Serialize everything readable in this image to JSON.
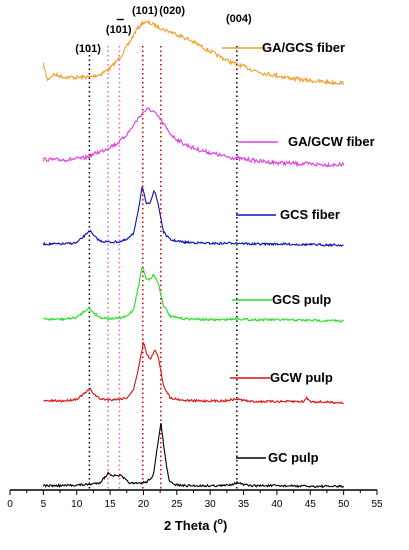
{
  "chart_data": {
    "type": "line",
    "title": "",
    "xlabel": "2 Theta (",
    "xlabel_sup": "o",
    "xlabel_close": ")",
    "ylabel": "",
    "xlim": [
      0,
      55
    ],
    "x_ticks": [
      "0",
      "5",
      "10",
      "15",
      "20",
      "25",
      "30",
      "35",
      "40",
      "45",
      "50",
      "55"
    ],
    "peak_labels": [
      {
        "text": "(101)",
        "x": 11.7
      },
      {
        "text": "(101)",
        "x": 16.3
      },
      {
        "text": "(101)",
        "x": 20.2
      },
      {
        "text": "(020)",
        "x": 24.3
      },
      {
        "text": "(004)",
        "x": 34.3
      }
    ],
    "reference_lines": [
      {
        "x": 11.9,
        "color": "#000000"
      },
      {
        "x": 14.7,
        "color": "#e060e0"
      },
      {
        "x": 16.4,
        "color": "#e060e0"
      },
      {
        "x": 19.9,
        "color": "#d00000"
      },
      {
        "x": 22.6,
        "color": "#d00000"
      },
      {
        "x": 34.0,
        "color": "#000000"
      }
    ],
    "series": [
      {
        "name": "GA/GCS fiber",
        "color": "#f0a030",
        "points": [
          [
            5,
            0.3
          ],
          [
            5.6,
            0.05
          ],
          [
            6.5,
            0.14
          ],
          [
            8,
            0.1
          ],
          [
            10,
            0.09
          ],
          [
            12,
            0.1
          ],
          [
            13.5,
            0.14
          ],
          [
            15,
            0.24
          ],
          [
            16.5,
            0.42
          ],
          [
            18,
            0.68
          ],
          [
            19,
            0.88
          ],
          [
            20,
            1.0
          ],
          [
            21,
            0.98
          ],
          [
            22,
            0.93
          ],
          [
            23,
            0.88
          ],
          [
            24,
            0.84
          ],
          [
            25,
            0.8
          ],
          [
            26,
            0.75
          ],
          [
            27,
            0.7
          ],
          [
            28,
            0.64
          ],
          [
            29,
            0.58
          ],
          [
            30,
            0.52
          ],
          [
            31,
            0.46
          ],
          [
            32,
            0.4
          ],
          [
            33,
            0.35
          ],
          [
            34,
            0.31
          ],
          [
            35,
            0.27
          ],
          [
            36,
            0.23
          ],
          [
            38,
            0.16
          ],
          [
            40,
            0.12
          ],
          [
            42,
            0.08
          ],
          [
            44,
            0.05
          ],
          [
            46,
            0.03
          ],
          [
            48,
            0.01
          ],
          [
            50,
            0.0
          ]
        ]
      },
      {
        "name": "GA/GCW fiber",
        "color": "#e040e0",
        "points": [
          [
            5,
            0.1
          ],
          [
            7,
            0.09
          ],
          [
            9,
            0.1
          ],
          [
            11,
            0.12
          ],
          [
            12,
            0.16
          ],
          [
            13,
            0.22
          ],
          [
            14,
            0.26
          ],
          [
            15,
            0.33
          ],
          [
            16,
            0.38
          ],
          [
            17,
            0.48
          ],
          [
            18,
            0.62
          ],
          [
            19,
            0.8
          ],
          [
            20,
            0.95
          ],
          [
            20.8,
            1.0
          ],
          [
            21.5,
            0.95
          ],
          [
            22.5,
            0.82
          ],
          [
            23.5,
            0.64
          ],
          [
            24.5,
            0.5
          ],
          [
            26,
            0.38
          ],
          [
            28,
            0.28
          ],
          [
            30,
            0.22
          ],
          [
            32,
            0.16
          ],
          [
            34,
            0.12
          ],
          [
            36,
            0.09
          ],
          [
            38,
            0.06
          ],
          [
            40,
            0.04
          ],
          [
            42,
            0.03
          ],
          [
            44,
            0.02
          ],
          [
            46,
            0.01
          ],
          [
            50,
            0.0
          ]
        ]
      },
      {
        "name": "GCS fiber",
        "color": "#1010b0",
        "points": [
          [
            5,
            0.05
          ],
          [
            8,
            0.05
          ],
          [
            10,
            0.07
          ],
          [
            11.3,
            0.2
          ],
          [
            11.9,
            0.28
          ],
          [
            12.6,
            0.18
          ],
          [
            13.5,
            0.1
          ],
          [
            15,
            0.08
          ],
          [
            16.5,
            0.09
          ],
          [
            17.5,
            0.12
          ],
          [
            18.5,
            0.22
          ],
          [
            19.2,
            0.6
          ],
          [
            19.8,
            1.0
          ],
          [
            20.5,
            0.7
          ],
          [
            21.0,
            0.75
          ],
          [
            21.6,
            0.95
          ],
          [
            22.2,
            0.72
          ],
          [
            23.0,
            0.25
          ],
          [
            24,
            0.12
          ],
          [
            26,
            0.08
          ],
          [
            28,
            0.07
          ],
          [
            30,
            0.06
          ],
          [
            32,
            0.06
          ],
          [
            34,
            0.07
          ],
          [
            36,
            0.05
          ],
          [
            40,
            0.05
          ],
          [
            45,
            0.04
          ],
          [
            50,
            0.03
          ]
        ]
      },
      {
        "name": "GCS pulp",
        "color": "#20e020",
        "points": [
          [
            5,
            0.05
          ],
          [
            8,
            0.05
          ],
          [
            10,
            0.08
          ],
          [
            11,
            0.18
          ],
          [
            11.8,
            0.25
          ],
          [
            12.6,
            0.16
          ],
          [
            13.5,
            0.08
          ],
          [
            15,
            0.06
          ],
          [
            16.5,
            0.07
          ],
          [
            17.5,
            0.1
          ],
          [
            18.5,
            0.22
          ],
          [
            19.2,
            0.6
          ],
          [
            19.8,
            1.0
          ],
          [
            20.4,
            0.78
          ],
          [
            21.0,
            0.76
          ],
          [
            21.5,
            0.85
          ],
          [
            22.2,
            0.7
          ],
          [
            23.0,
            0.3
          ],
          [
            24,
            0.1
          ],
          [
            26,
            0.06
          ],
          [
            28,
            0.05
          ],
          [
            30,
            0.04
          ],
          [
            32,
            0.04
          ],
          [
            34,
            0.06
          ],
          [
            36,
            0.04
          ],
          [
            40,
            0.04
          ],
          [
            45,
            0.03
          ],
          [
            50,
            0.02
          ]
        ]
      },
      {
        "name": "GCW pulp",
        "color": "#e01010",
        "points": [
          [
            5,
            0.05
          ],
          [
            8,
            0.05
          ],
          [
            10,
            0.08
          ],
          [
            11.3,
            0.18
          ],
          [
            12.0,
            0.24
          ],
          [
            12.8,
            0.14
          ],
          [
            13.5,
            0.08
          ],
          [
            15,
            0.07
          ],
          [
            16.5,
            0.08
          ],
          [
            17.5,
            0.1
          ],
          [
            18.5,
            0.22
          ],
          [
            19.3,
            0.6
          ],
          [
            20.0,
            1.0
          ],
          [
            20.6,
            0.78
          ],
          [
            21.1,
            0.72
          ],
          [
            21.7,
            0.88
          ],
          [
            22.3,
            0.72
          ],
          [
            23.0,
            0.3
          ],
          [
            24,
            0.1
          ],
          [
            26,
            0.06
          ],
          [
            28,
            0.05
          ],
          [
            30,
            0.05
          ],
          [
            32,
            0.05
          ],
          [
            34,
            0.08
          ],
          [
            36,
            0.04
          ],
          [
            40,
            0.04
          ],
          [
            44,
            0.04
          ],
          [
            44.5,
            0.1
          ],
          [
            45,
            0.04
          ],
          [
            50,
            0.02
          ]
        ]
      },
      {
        "name": "GC pulp",
        "color": "#000000",
        "points": [
          [
            5,
            0.02
          ],
          [
            8,
            0.02
          ],
          [
            10,
            0.03
          ],
          [
            12,
            0.04
          ],
          [
            13.5,
            0.07
          ],
          [
            14.3,
            0.16
          ],
          [
            14.8,
            0.22
          ],
          [
            15.3,
            0.18
          ],
          [
            16.0,
            0.17
          ],
          [
            16.5,
            0.18
          ],
          [
            17.0,
            0.14
          ],
          [
            17.8,
            0.07
          ],
          [
            18.5,
            0.05
          ],
          [
            19.5,
            0.06
          ],
          [
            20.5,
            0.08
          ],
          [
            21.5,
            0.18
          ],
          [
            22.0,
            0.55
          ],
          [
            22.6,
            1.0
          ],
          [
            23.2,
            0.5
          ],
          [
            23.8,
            0.1
          ],
          [
            24.5,
            0.04
          ],
          [
            26,
            0.02
          ],
          [
            28,
            0.02
          ],
          [
            30,
            0.02
          ],
          [
            32,
            0.02
          ],
          [
            33.5,
            0.05
          ],
          [
            34.1,
            0.07
          ],
          [
            34.8,
            0.04
          ],
          [
            36,
            0.02
          ],
          [
            40,
            0.02
          ],
          [
            45,
            0.01
          ],
          [
            50,
            0.01
          ]
        ]
      }
    ]
  }
}
